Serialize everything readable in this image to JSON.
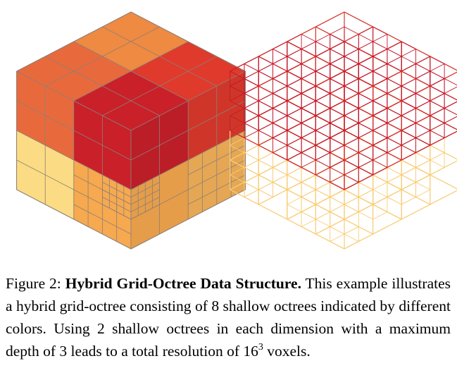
{
  "figure": {
    "colors": {
      "octree_top_back": "#ee8a42",
      "octree_top_left": "#e86a3c",
      "octree_top_right": "#df3a2c",
      "octree_top_front": "#c9202a",
      "octree_bottom_back": "#f9d57c",
      "octree_bottom_left": "#fbdc84",
      "octree_bottom_right": "#f6b45a",
      "octree_bottom_front": "#f6a94f",
      "wire_top": "#d8352e",
      "wire_bottom": "#f8cd78",
      "wire_deep": "#c3182b"
    },
    "structure": {
      "shallow_octrees_per_dimension": 2,
      "max_depth": 3,
      "total_resolution": 16
    }
  },
  "caption": {
    "label": "Figure 2:",
    "title": "Hybrid Grid-Octree Data Structure.",
    "text_before_exp": "This example illustrates a hybrid grid-octree consisting of 8 shallow octrees indicated by different colors. Using 2 shallow octrees in each dimension with a maximum depth of 3 leads to a total resolution of 16",
    "exponent": "3",
    "text_after_exp": "voxels."
  }
}
